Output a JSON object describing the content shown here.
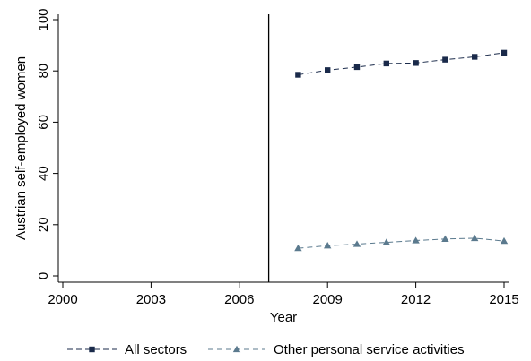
{
  "chart_data": {
    "type": "line",
    "title": "",
    "xlabel": "Year",
    "ylabel": "Austrian self-employed women",
    "xlim": [
      2000,
      2015
    ],
    "ylim": [
      0,
      100
    ],
    "x_ticks": [
      2000,
      2003,
      2006,
      2009,
      2012,
      2015
    ],
    "y_ticks": [
      0,
      20,
      40,
      60,
      80,
      100
    ],
    "grid": false,
    "legend_position": "bottom",
    "reference_line_x": 2007,
    "series": [
      {
        "name": "All sectors",
        "marker": "square",
        "line_style": "dashed",
        "color": "#1a2a4a",
        "x": [
          2008,
          2009,
          2010,
          2011,
          2012,
          2013,
          2014,
          2015
        ],
        "values": [
          78.5,
          80.3,
          81.5,
          82.9,
          83.1,
          84.4,
          85.5,
          87.1
        ]
      },
      {
        "name": "Other personal service activities",
        "marker": "triangle",
        "line_style": "dashed",
        "color": "#5b7a8e",
        "x": [
          2008,
          2009,
          2010,
          2011,
          2012,
          2013,
          2014,
          2015
        ],
        "values": [
          10.8,
          11.8,
          12.4,
          13.1,
          13.8,
          14.4,
          14.7,
          13.6
        ]
      }
    ]
  }
}
